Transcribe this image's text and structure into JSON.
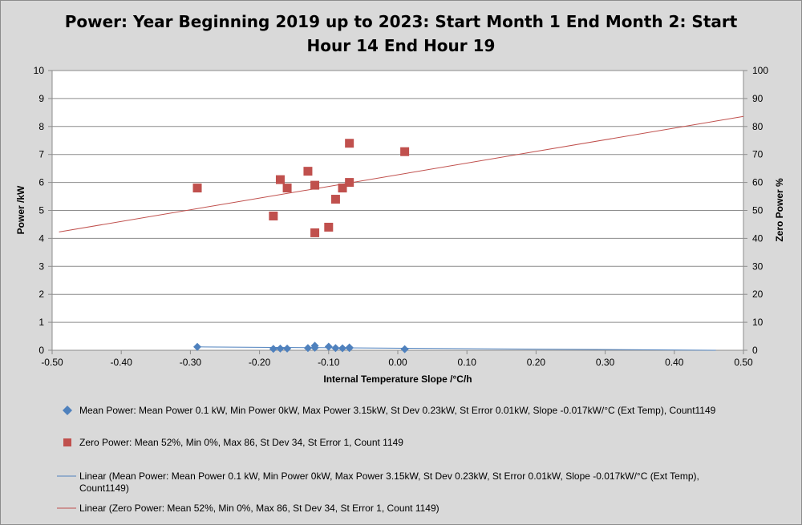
{
  "chart_data": {
    "type": "scatter",
    "title_lines": [
      "Power: Year Beginning 2019 up to 2023: Start Month 1 End Month 2: Start",
      "Hour 14 End Hour 19"
    ],
    "xlabel": "Internal Temperature Slope /°C/h",
    "ylabel": "Power /kW",
    "y2label": "Zero Power %",
    "xlim": [
      -0.5,
      0.5
    ],
    "ylim": [
      0,
      10
    ],
    "y2lim": [
      0,
      100
    ],
    "x_ticks": [
      "-0.50",
      "-0.40",
      "-0.30",
      "-0.20",
      "-0.10",
      "0.00",
      "0.10",
      "0.20",
      "0.30",
      "0.40",
      "0.50"
    ],
    "y_ticks": [
      "0",
      "1",
      "2",
      "3",
      "4",
      "5",
      "6",
      "7",
      "8",
      "9",
      "10"
    ],
    "y2_ticks": [
      "0",
      "10",
      "20",
      "30",
      "40",
      "50",
      "60",
      "70",
      "80",
      "90",
      "100"
    ],
    "grid": "horizontal",
    "series": [
      {
        "legend": "Mean Power: Mean Power 0.1 kW,  Min Power 0kW,  Max Power 3.15kW,  St Dev 0.23kW,  St Error 0.01kW, Slope -0.017kW/°C (Ext Temp), Count1149",
        "axis": "left",
        "marker": "diamond",
        "color": "#4f81bd",
        "points": [
          [
            -0.29,
            0.12
          ],
          [
            -0.18,
            0.05
          ],
          [
            -0.17,
            0.06
          ],
          [
            -0.16,
            0.06
          ],
          [
            -0.13,
            0.08
          ],
          [
            -0.12,
            0.16
          ],
          [
            -0.12,
            0.09
          ],
          [
            -0.1,
            0.13
          ],
          [
            -0.09,
            0.08
          ],
          [
            -0.08,
            0.07
          ],
          [
            -0.07,
            0.1
          ],
          [
            -0.07,
            0.08
          ],
          [
            0.01,
            0.04
          ]
        ]
      },
      {
        "legend": "Zero Power:  Mean 52%, Min 0%, Max 86, St Dev 34, St Error 1, Count 1149",
        "axis": "right",
        "marker": "square",
        "color": "#c0504d",
        "points": [
          [
            -0.29,
            58
          ],
          [
            -0.18,
            48
          ],
          [
            -0.17,
            61
          ],
          [
            -0.16,
            58
          ],
          [
            -0.13,
            64
          ],
          [
            -0.12,
            42
          ],
          [
            -0.12,
            59
          ],
          [
            -0.1,
            44
          ],
          [
            -0.09,
            54
          ],
          [
            -0.08,
            58
          ],
          [
            -0.07,
            60
          ],
          [
            -0.07,
            74
          ],
          [
            0.01,
            71
          ]
        ]
      }
    ],
    "trendlines": [
      {
        "legend_lines": [
          "Linear (Mean Power: Mean Power 0.1 kW,  Min Power 0kW,  Max Power 3.15kW,  St Dev 0.23kW,  St Error 0.01kW, Slope -0.017kW/°C (Ext Temp),",
          "Count1149)"
        ],
        "axis": "left",
        "color": "#4f81bd",
        "from": [
          -0.29,
          0.12
        ],
        "to": [
          0.46,
          0.0
        ]
      },
      {
        "legend_lines": [
          "Linear (Zero Power:  Mean 52%, Min 0%, Max 86, St Dev 34, St Error 1, Count 1149)"
        ],
        "axis": "right",
        "color": "#c0504d",
        "from": [
          -0.49,
          42.3
        ],
        "to": [
          0.5,
          83.6
        ]
      }
    ]
  }
}
